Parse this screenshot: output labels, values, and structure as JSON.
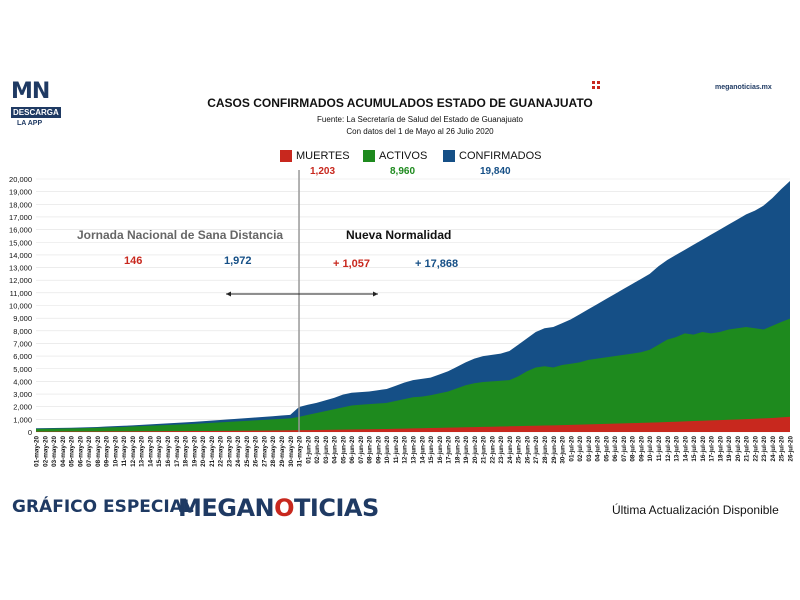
{
  "logo": {
    "top": "MN",
    "tag": "DESCARGA",
    "app": "LA APP"
  },
  "site": "meganoticias.mx",
  "footer": {
    "left": "GRÁFICO ESPECIAL",
    "brand_a": "MEGAN",
    "brand_b": "O",
    "brand_c": "TICIAS",
    "right": "Última Actualización Disponible"
  },
  "chart_data": {
    "type": "area",
    "title": "CASOS CONFIRMADOS ACUMULADOS ESTADO DE GUANAJUATO",
    "subtitle_lines": [
      "Fuente: La Secretaría de Salud del Estado de Guanajuato",
      "Con datos del 1 de Mayo al 26 Julio 2020"
    ],
    "ylim": [
      0,
      20000
    ],
    "yticks": [
      "0",
      "1,000",
      "2,000",
      "3,000",
      "4,000",
      "5,000",
      "6,000",
      "7,000",
      "8,000",
      "9,000",
      "10,000",
      "11,000",
      "12,000",
      "13,000",
      "14,000",
      "15,000",
      "16,000",
      "17,000",
      "18,000",
      "19,000",
      "20,000"
    ],
    "x": [
      "01-may-20",
      "02-may-20",
      "03-may-20",
      "04-may-20",
      "05-may-20",
      "06-may-20",
      "07-may-20",
      "08-may-20",
      "09-may-20",
      "10-may-20",
      "11-may-20",
      "12-may-20",
      "13-may-20",
      "14-may-20",
      "15-may-20",
      "16-may-20",
      "17-may-20",
      "18-may-20",
      "19-may-20",
      "20-may-20",
      "21-may-20",
      "22-may-20",
      "23-may-20",
      "24-may-20",
      "25-may-20",
      "26-may-20",
      "27-may-20",
      "28-may-20",
      "29-may-20",
      "30-may-20",
      "31-may-20",
      "01-jun-20",
      "02-jun-20",
      "03-jun-20",
      "04-jun-20",
      "05-jun-20",
      "06-jun-20",
      "07-jun-20",
      "08-jun-20",
      "09-jun-20",
      "10-jun-20",
      "11-jun-20",
      "12-jun-20",
      "13-jun-20",
      "14-jun-20",
      "15-jun-20",
      "16-jun-20",
      "17-jun-20",
      "18-jun-20",
      "19-jun-20",
      "20-jun-20",
      "21-jun-20",
      "22-jun-20",
      "23-jun-20",
      "24-jun-20",
      "25-jun-20",
      "26-jun-20",
      "27-jun-20",
      "28-jun-20",
      "29-jun-20",
      "30-jun-20",
      "01-jul-20",
      "02-jul-20",
      "03-jul-20",
      "04-jul-20",
      "05-jul-20",
      "06-jul-20",
      "07-jul-20",
      "08-jul-20",
      "09-jul-20",
      "10-jul-20",
      "11-jul-20",
      "12-jul-20",
      "13-jul-20",
      "14-jul-20",
      "15-jul-20",
      "16-jul-20",
      "17-jul-20",
      "18-jul-20",
      "19-jul-20",
      "20-jul-20",
      "21-jul-20",
      "22-jul-20",
      "23-jul-20",
      "24-jul-20",
      "25-jul-20",
      "26-jul-20"
    ],
    "series": [
      {
        "name": "MUERTES",
        "color": "#c8281e",
        "total": "1,203",
        "values": [
          30,
          32,
          34,
          36,
          38,
          40,
          42,
          44,
          46,
          48,
          50,
          53,
          56,
          59,
          62,
          65,
          68,
          72,
          76,
          80,
          84,
          88,
          92,
          96,
          100,
          104,
          110,
          118,
          126,
          134,
          146,
          150,
          160,
          170,
          180,
          190,
          200,
          210,
          220,
          230,
          240,
          255,
          270,
          285,
          300,
          315,
          330,
          345,
          360,
          375,
          390,
          405,
          420,
          435,
          450,
          465,
          480,
          495,
          510,
          525,
          540,
          560,
          580,
          600,
          620,
          640,
          660,
          680,
          700,
          720,
          740,
          765,
          790,
          815,
          840,
          865,
          890,
          915,
          940,
          965,
          990,
          1020,
          1050,
          1080,
          1110,
          1160,
          1203
        ]
      },
      {
        "name": "ACTIVOS",
        "color": "#1e8a1e",
        "total": "8,960",
        "values": [
          250,
          260,
          270,
          280,
          290,
          300,
          320,
          340,
          360,
          380,
          400,
          430,
          460,
          490,
          520,
          550,
          580,
          610,
          640,
          680,
          720,
          760,
          800,
          840,
          880,
          920,
          960,
          1000,
          1040,
          1080,
          1200,
          1350,
          1500,
          1650,
          1800,
          1950,
          2100,
          2150,
          2200,
          2250,
          2300,
          2450,
          2600,
          2750,
          2800,
          2900,
          3050,
          3200,
          3450,
          3700,
          3850,
          3950,
          4000,
          4050,
          4100,
          4400,
          4800,
          5100,
          5200,
          5100,
          5300,
          5400,
          5500,
          5700,
          5800,
          5900,
          6000,
          6100,
          6200,
          6300,
          6500,
          6900,
          7300,
          7500,
          7800,
          7700,
          7900,
          7800,
          7900,
          8100,
          8200,
          8300,
          8200,
          8100,
          8400,
          8700,
          8960
        ]
      },
      {
        "name": "CONFIRMADOS",
        "color": "#154f86",
        "total": "19,840",
        "values": [
          300,
          310,
          320,
          330,
          340,
          360,
          380,
          400,
          430,
          460,
          490,
          520,
          560,
          600,
          640,
          680,
          720,
          760,
          800,
          850,
          900,
          950,
          1000,
          1050,
          1100,
          1150,
          1200,
          1250,
          1300,
          1350,
          1972,
          2150,
          2300,
          2500,
          2700,
          2950,
          3100,
          3150,
          3200,
          3300,
          3400,
          3650,
          3900,
          4100,
          4200,
          4300,
          4550,
          4800,
          5150,
          5500,
          5800,
          6000,
          6100,
          6200,
          6400,
          6900,
          7400,
          7900,
          8200,
          8300,
          8600,
          8900,
          9300,
          9700,
          10100,
          10500,
          10900,
          11300,
          11700,
          12100,
          12500,
          13100,
          13600,
          14000,
          14400,
          14800,
          15200,
          15600,
          16000,
          16400,
          16800,
          17200,
          17500,
          17900,
          18500,
          19200,
          19840
        ]
      }
    ],
    "annotations": {
      "period1_label": "Jornada Nacional de Sana Distancia",
      "period1_deaths": "146",
      "period1_confirmed": "1,972",
      "period2_label": "Nueva Normalidad",
      "period2_deaths": "+ 1,057",
      "period2_confirmed": "+ 17,868"
    }
  }
}
